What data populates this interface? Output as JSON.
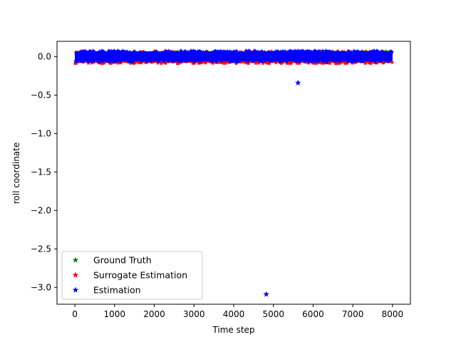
{
  "chart_data": {
    "type": "scatter",
    "title": "",
    "xlabel": "Time step",
    "ylabel": "roll coordinate",
    "xlim": [
      -450,
      8450
    ],
    "ylim": [
      -3.22,
      0.2
    ],
    "xticks": [
      0,
      1000,
      2000,
      3000,
      4000,
      5000,
      6000,
      7000,
      8000
    ],
    "yticks": [
      0.0,
      -0.5,
      -1.0,
      -1.5,
      -2.0,
      -2.5,
      -3.0
    ],
    "xtick_labels": [
      "0",
      "1000",
      "2000",
      "3000",
      "4000",
      "5000",
      "6000",
      "7000",
      "8000"
    ],
    "ytick_labels": [
      "0.0",
      "−0.5",
      "−1.0",
      "−1.5",
      "−2.0",
      "−2.5",
      "−3.0"
    ],
    "marker": "star",
    "grid": false,
    "legend_position": "lower-left",
    "series": [
      {
        "name": "Ground Truth",
        "color": "#008000",
        "x_range": [
          0,
          8000
        ],
        "y_band": [
          -0.06,
          0.06
        ],
        "outliers": []
      },
      {
        "name": "Surrogate Estimation",
        "color": "#ff0000",
        "x_range": [
          0,
          8000
        ],
        "y_band": [
          -0.08,
          0.06
        ],
        "outliers": []
      },
      {
        "name": "Estimation",
        "color": "#0000ff",
        "x_range": [
          0,
          8000
        ],
        "y_band": [
          -0.06,
          0.07
        ],
        "outliers": [
          {
            "x": 5620,
            "y": -0.34
          },
          {
            "x": 4820,
            "y": -3.09
          }
        ]
      }
    ]
  }
}
